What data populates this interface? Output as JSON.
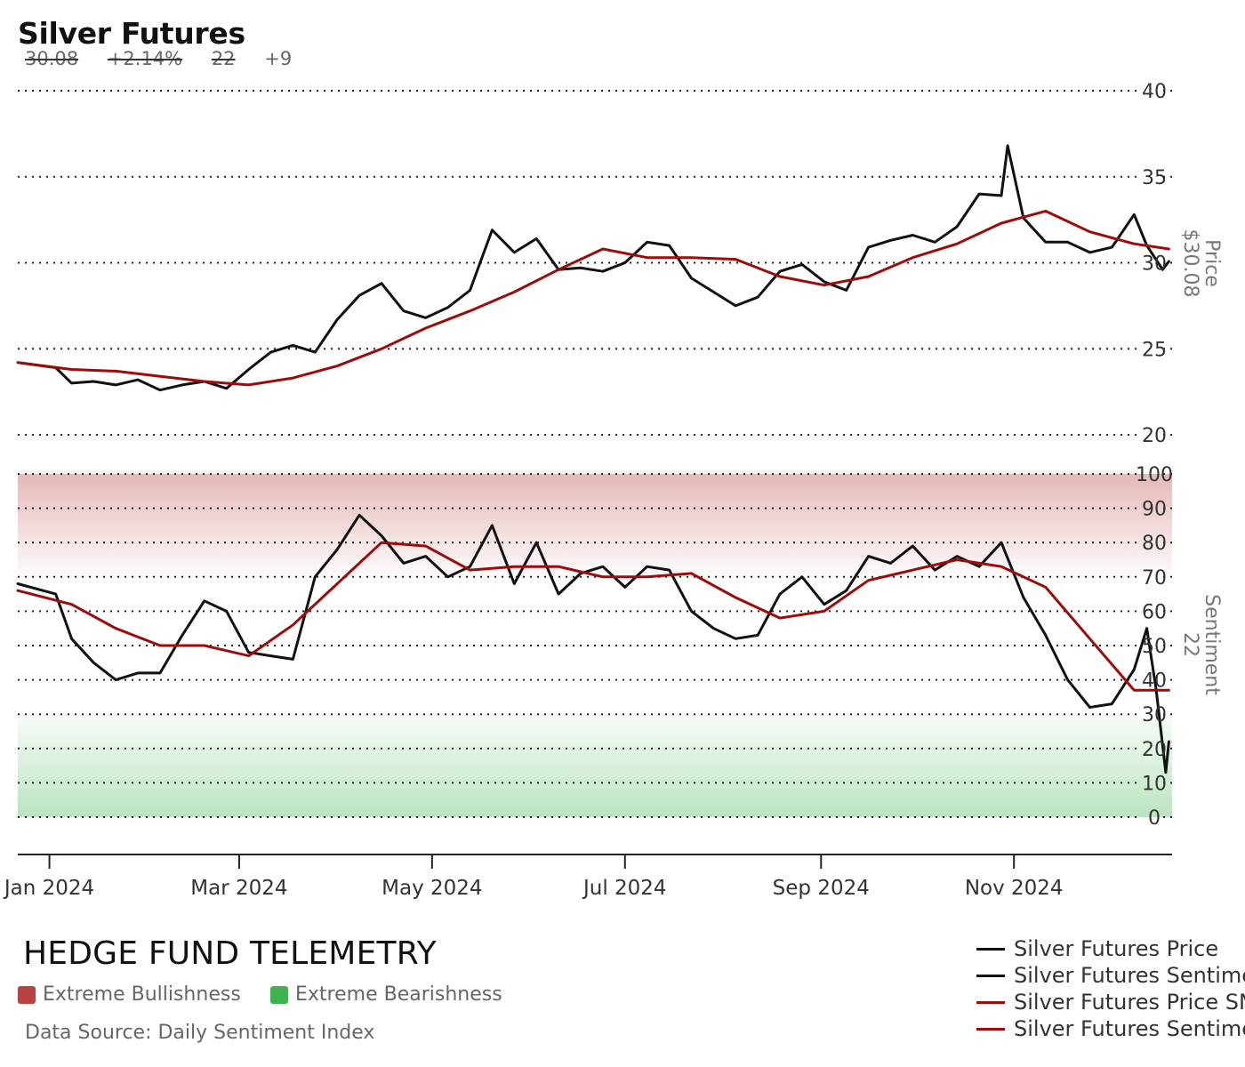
{
  "header": {
    "title": "Silver Futures",
    "stats": {
      "price": "30.08",
      "change": "+2.14%",
      "sentiment": "22",
      "sentiment_change": "+9"
    }
  },
  "footer": {
    "brand": "HEDGE FUND TELEMETRY",
    "band_legend": [
      {
        "label": "Extreme Bullishness",
        "color": "#b94343"
      },
      {
        "label": "Extreme Bearishness",
        "color": "#3fb34f"
      }
    ],
    "source": "Data Source: Daily Sentiment Index"
  },
  "chart_data": {
    "type": "line",
    "x_axis": {
      "ticks": [
        "Jan 2024",
        "Mar 2024",
        "May 2024",
        "Jul 2024",
        "Sep 2024",
        "Nov 2024"
      ],
      "range": [
        "2023-12-22",
        "2024-12-21"
      ]
    },
    "panels": [
      {
        "name": "price",
        "axis_label": "Price",
        "axis_value": "$30.08",
        "ylim": [
          20,
          40
        ],
        "yticks": [
          20,
          25,
          30,
          35,
          40
        ],
        "grid": true,
        "series": [
          {
            "name": "Silver Futures Price",
            "color": "#111111",
            "width": 3,
            "points": [
              [
                "2023-12-22",
                24.2
              ],
              [
                "2024-01-03",
                23.9
              ],
              [
                "2024-01-08",
                23.0
              ],
              [
                "2024-01-15",
                23.1
              ],
              [
                "2024-01-22",
                22.9
              ],
              [
                "2024-01-29",
                23.2
              ],
              [
                "2024-02-05",
                22.6
              ],
              [
                "2024-02-12",
                22.9
              ],
              [
                "2024-02-19",
                23.1
              ],
              [
                "2024-02-26",
                22.7
              ],
              [
                "2024-03-04",
                23.8
              ],
              [
                "2024-03-11",
                24.8
              ],
              [
                "2024-03-18",
                25.2
              ],
              [
                "2024-03-25",
                24.8
              ],
              [
                "2024-04-01",
                26.7
              ],
              [
                "2024-04-08",
                28.1
              ],
              [
                "2024-04-15",
                28.8
              ],
              [
                "2024-04-22",
                27.2
              ],
              [
                "2024-04-29",
                26.8
              ],
              [
                "2024-05-06",
                27.4
              ],
              [
                "2024-05-13",
                28.4
              ],
              [
                "2024-05-20",
                31.9
              ],
              [
                "2024-05-27",
                30.6
              ],
              [
                "2024-06-03",
                31.4
              ],
              [
                "2024-06-10",
                29.6
              ],
              [
                "2024-06-17",
                29.7
              ],
              [
                "2024-06-24",
                29.5
              ],
              [
                "2024-07-01",
                30.0
              ],
              [
                "2024-07-08",
                31.2
              ],
              [
                "2024-07-15",
                31.0
              ],
              [
                "2024-07-22",
                29.1
              ],
              [
                "2024-07-29",
                28.3
              ],
              [
                "2024-08-05",
                27.5
              ],
              [
                "2024-08-12",
                28.0
              ],
              [
                "2024-08-19",
                29.5
              ],
              [
                "2024-08-26",
                29.9
              ],
              [
                "2024-09-02",
                28.9
              ],
              [
                "2024-09-09",
                28.4
              ],
              [
                "2024-09-16",
                30.9
              ],
              [
                "2024-09-23",
                31.3
              ],
              [
                "2024-09-30",
                31.6
              ],
              [
                "2024-10-07",
                31.2
              ],
              [
                "2024-10-14",
                32.1
              ],
              [
                "2024-10-21",
                34.0
              ],
              [
                "2024-10-28",
                33.9
              ],
              [
                "2024-10-30",
                36.8
              ],
              [
                "2024-11-04",
                32.6
              ],
              [
                "2024-11-11",
                31.2
              ],
              [
                "2024-11-18",
                31.2
              ],
              [
                "2024-11-25",
                30.6
              ],
              [
                "2024-12-02",
                30.9
              ],
              [
                "2024-12-09",
                32.8
              ],
              [
                "2024-12-13",
                31.0
              ],
              [
                "2024-12-18",
                29.6
              ],
              [
                "2024-12-20",
                30.08
              ]
            ]
          },
          {
            "name": "Silver Futures Price SMA",
            "color": "#9b0c0c",
            "width": 3,
            "points": [
              [
                "2023-12-22",
                24.2
              ],
              [
                "2024-01-08",
                23.8
              ],
              [
                "2024-01-22",
                23.7
              ],
              [
                "2024-02-05",
                23.4
              ],
              [
                "2024-02-19",
                23.1
              ],
              [
                "2024-03-04",
                22.9
              ],
              [
                "2024-03-18",
                23.3
              ],
              [
                "2024-04-01",
                24.0
              ],
              [
                "2024-04-15",
                25.0
              ],
              [
                "2024-04-29",
                26.2
              ],
              [
                "2024-05-13",
                27.2
              ],
              [
                "2024-05-27",
                28.3
              ],
              [
                "2024-06-10",
                29.6
              ],
              [
                "2024-06-24",
                30.8
              ],
              [
                "2024-07-08",
                30.3
              ],
              [
                "2024-07-22",
                30.3
              ],
              [
                "2024-08-05",
                30.2
              ],
              [
                "2024-08-19",
                29.2
              ],
              [
                "2024-09-02",
                28.7
              ],
              [
                "2024-09-16",
                29.2
              ],
              [
                "2024-09-30",
                30.3
              ],
              [
                "2024-10-14",
                31.1
              ],
              [
                "2024-10-28",
                32.3
              ],
              [
                "2024-11-11",
                33.0
              ],
              [
                "2024-11-25",
                31.8
              ],
              [
                "2024-12-09",
                31.1
              ],
              [
                "2024-12-20",
                30.8
              ]
            ]
          }
        ]
      },
      {
        "name": "sentiment",
        "axis_label": "Sentiment",
        "axis_value": "22",
        "ylim": [
          0,
          100
        ],
        "yticks": [
          0,
          10,
          20,
          30,
          40,
          50,
          60,
          70,
          80,
          90,
          100
        ],
        "grid": true,
        "bands": [
          {
            "label": "Extreme Bullishness",
            "from": 70,
            "to": 100,
            "color": "#b94343"
          },
          {
            "label": "Extreme Bearishness",
            "from": 0,
            "to": 30,
            "color": "#3fb34f"
          }
        ],
        "series": [
          {
            "name": "Silver Futures Sentiment",
            "color": "#111111",
            "width": 3,
            "points": [
              [
                "2023-12-22",
                68
              ],
              [
                "2024-01-03",
                65
              ],
              [
                "2024-01-08",
                52
              ],
              [
                "2024-01-15",
                45
              ],
              [
                "2024-01-22",
                40
              ],
              [
                "2024-01-29",
                42
              ],
              [
                "2024-02-05",
                42
              ],
              [
                "2024-02-12",
                53
              ],
              [
                "2024-02-19",
                63
              ],
              [
                "2024-02-26",
                60
              ],
              [
                "2024-03-04",
                48
              ],
              [
                "2024-03-11",
                47
              ],
              [
                "2024-03-18",
                46
              ],
              [
                "2024-03-25",
                70
              ],
              [
                "2024-04-01",
                78
              ],
              [
                "2024-04-08",
                88
              ],
              [
                "2024-04-15",
                82
              ],
              [
                "2024-04-22",
                74
              ],
              [
                "2024-04-29",
                76
              ],
              [
                "2024-05-06",
                70
              ],
              [
                "2024-05-13",
                73
              ],
              [
                "2024-05-20",
                85
              ],
              [
                "2024-05-27",
                68
              ],
              [
                "2024-06-03",
                80
              ],
              [
                "2024-06-10",
                65
              ],
              [
                "2024-06-17",
                71
              ],
              [
                "2024-06-24",
                73
              ],
              [
                "2024-07-01",
                67
              ],
              [
                "2024-07-08",
                73
              ],
              [
                "2024-07-15",
                72
              ],
              [
                "2024-07-22",
                60
              ],
              [
                "2024-07-29",
                55
              ],
              [
                "2024-08-05",
                52
              ],
              [
                "2024-08-12",
                53
              ],
              [
                "2024-08-19",
                65
              ],
              [
                "2024-08-26",
                70
              ],
              [
                "2024-09-02",
                62
              ],
              [
                "2024-09-09",
                66
              ],
              [
                "2024-09-16",
                76
              ],
              [
                "2024-09-23",
                74
              ],
              [
                "2024-09-30",
                79
              ],
              [
                "2024-10-07",
                72
              ],
              [
                "2024-10-14",
                76
              ],
              [
                "2024-10-21",
                73
              ],
              [
                "2024-10-28",
                80
              ],
              [
                "2024-11-04",
                64
              ],
              [
                "2024-11-11",
                53
              ],
              [
                "2024-11-18",
                40
              ],
              [
                "2024-11-25",
                32
              ],
              [
                "2024-12-02",
                33
              ],
              [
                "2024-12-09",
                43
              ],
              [
                "2024-12-13",
                55
              ],
              [
                "2024-12-16",
                37
              ],
              [
                "2024-12-19",
                13
              ],
              [
                "2024-12-20",
                22
              ]
            ]
          },
          {
            "name": "Silver Futures Sentiment SMA",
            "color": "#9b0c0c",
            "width": 3,
            "points": [
              [
                "2023-12-22",
                66
              ],
              [
                "2024-01-08",
                62
              ],
              [
                "2024-01-22",
                55
              ],
              [
                "2024-02-05",
                50
              ],
              [
                "2024-02-19",
                50
              ],
              [
                "2024-03-04",
                47
              ],
              [
                "2024-03-18",
                56
              ],
              [
                "2024-04-01",
                68
              ],
              [
                "2024-04-15",
                80
              ],
              [
                "2024-04-29",
                79
              ],
              [
                "2024-05-13",
                72
              ],
              [
                "2024-05-27",
                73
              ],
              [
                "2024-06-10",
                73
              ],
              [
                "2024-06-24",
                70
              ],
              [
                "2024-07-08",
                70
              ],
              [
                "2024-07-22",
                71
              ],
              [
                "2024-08-05",
                64
              ],
              [
                "2024-08-19",
                58
              ],
              [
                "2024-09-02",
                60
              ],
              [
                "2024-09-16",
                69
              ],
              [
                "2024-09-30",
                72
              ],
              [
                "2024-10-14",
                75
              ],
              [
                "2024-10-28",
                73
              ],
              [
                "2024-11-11",
                67
              ],
              [
                "2024-11-25",
                52
              ],
              [
                "2024-12-09",
                37
              ],
              [
                "2024-12-20",
                37
              ]
            ]
          }
        ]
      }
    ],
    "legend": {
      "position": "bottom-right",
      "entries": [
        {
          "label": "Silver Futures Price",
          "color": "#111111"
        },
        {
          "label": "Silver Futures Sentiment",
          "color": "#111111"
        },
        {
          "label": "Silver Futures Price SMA",
          "color": "#9b0c0c"
        },
        {
          "label": "Silver Futures Sentiment SMA",
          "color": "#9b0c0c"
        }
      ]
    }
  }
}
